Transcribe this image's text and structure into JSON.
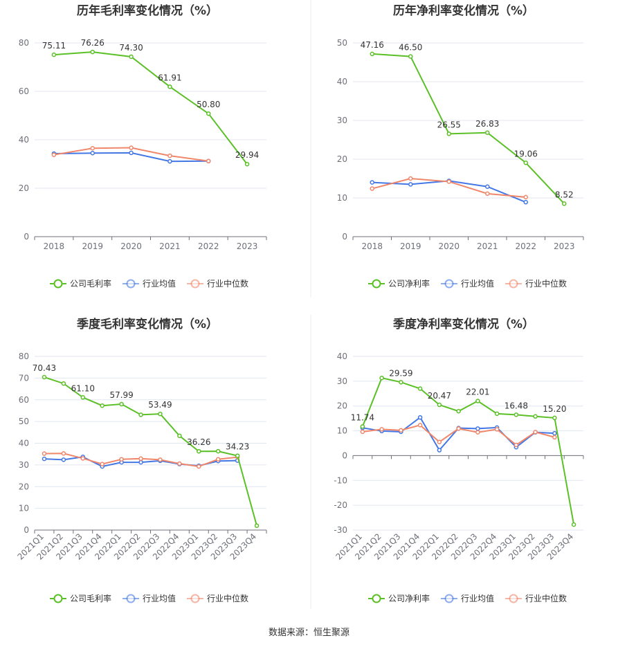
{
  "source": "数据来源：恒生聚源",
  "colors": {
    "company": "#5ac026",
    "industry_avg": "#4477e6",
    "industry_median": "#f0866a",
    "grid": "#e0e6f1",
    "axis": "#6e7079"
  },
  "chart_data": [
    {
      "type": "line",
      "title": "历年毛利率变化情况（%）",
      "categories": [
        "2018",
        "2019",
        "2020",
        "2021",
        "2022",
        "2023"
      ],
      "ylim": [
        0,
        80
      ],
      "yticks": [
        0,
        20,
        40,
        60,
        80
      ],
      "label_rotate": false,
      "series": [
        {
          "name": "公司毛利率",
          "color": "company",
          "values": [
            75.11,
            76.26,
            74.3,
            61.91,
            50.8,
            29.94
          ],
          "labels": [
            "75.11",
            "76.26",
            "74.30",
            "61.91",
            "50.80",
            "29.94"
          ]
        },
        {
          "name": "行业均值",
          "color": "industry_avg",
          "values": [
            34.3,
            34.5,
            34.6,
            31.1,
            31.2,
            null
          ]
        },
        {
          "name": "行业中位数",
          "color": "industry_median",
          "values": [
            33.8,
            36.5,
            36.7,
            33.4,
            31.2,
            null
          ]
        }
      ]
    },
    {
      "type": "line",
      "title": "历年净利率变化情况（%）",
      "categories": [
        "2018",
        "2019",
        "2020",
        "2021",
        "2022",
        "2023"
      ],
      "ylim": [
        0,
        50
      ],
      "yticks": [
        0,
        10,
        20,
        30,
        40,
        50
      ],
      "label_rotate": false,
      "series": [
        {
          "name": "公司净利率",
          "color": "company",
          "values": [
            47.16,
            46.5,
            26.55,
            26.83,
            19.06,
            8.52
          ],
          "labels": [
            "47.16",
            "46.50",
            "26.55",
            "26.83",
            "19.06",
            "8.52"
          ]
        },
        {
          "name": "行业均值",
          "color": "industry_avg",
          "values": [
            14.0,
            13.5,
            14.4,
            12.9,
            8.9,
            null
          ]
        },
        {
          "name": "行业中位数",
          "color": "industry_median",
          "values": [
            12.4,
            15.0,
            14.2,
            11.1,
            10.2,
            null
          ]
        }
      ]
    },
    {
      "type": "line",
      "title": "季度毛利率变化情况（%）",
      "categories": [
        "2021Q1",
        "2021Q2",
        "2021Q3",
        "2021Q4",
        "2022Q1",
        "2022Q2",
        "2022Q3",
        "2022Q4",
        "2023Q1",
        "2023Q2",
        "2023Q3",
        "2023Q4"
      ],
      "ylim": [
        0,
        80
      ],
      "yticks": [
        0,
        10,
        20,
        30,
        40,
        50,
        60,
        70,
        80
      ],
      "label_rotate": true,
      "series": [
        {
          "name": "公司毛利率",
          "color": "company",
          "values": [
            70.43,
            67.5,
            61.1,
            57.3,
            57.99,
            53.1,
            53.49,
            43.4,
            36.26,
            36.3,
            34.23,
            2.0
          ],
          "labels": [
            "70.43",
            "",
            "61.10",
            "",
            "57.99",
            "",
            "53.49",
            "",
            "36.26",
            "",
            "34.23",
            ""
          ]
        },
        {
          "name": "行业均值",
          "color": "industry_avg",
          "values": [
            32.8,
            32.4,
            33.7,
            29.3,
            31.2,
            31.2,
            31.9,
            30.4,
            29.6,
            31.8,
            32.0,
            null
          ]
        },
        {
          "name": "行业中位数",
          "color": "industry_median",
          "values": [
            35.2,
            35.3,
            33.0,
            30.4,
            32.6,
            32.9,
            32.4,
            30.6,
            29.3,
            32.6,
            33.6,
            null
          ]
        }
      ]
    },
    {
      "type": "line",
      "title": "季度净利率变化情况（%）",
      "categories": [
        "2021Q1",
        "2021Q2",
        "2021Q3",
        "2021Q4",
        "2022Q1",
        "2022Q2",
        "2022Q3",
        "2022Q4",
        "2023Q1",
        "2023Q2",
        "2023Q3",
        "2023Q4"
      ],
      "ylim": [
        -30,
        40
      ],
      "yticks": [
        -30,
        -20,
        -10,
        0,
        10,
        20,
        30,
        40
      ],
      "label_rotate": true,
      "series": [
        {
          "name": "公司净利率",
          "color": "company",
          "values": [
            11.74,
            31.3,
            29.59,
            27.0,
            20.47,
            17.9,
            22.01,
            16.9,
            16.48,
            15.8,
            15.2,
            -27.8
          ],
          "labels": [
            "11.74",
            "",
            "29.59",
            "",
            "20.47",
            "",
            "22.01",
            "",
            "16.48",
            "",
            "15.20",
            ""
          ]
        },
        {
          "name": "行业均值",
          "color": "industry_avg",
          "values": [
            11.2,
            9.9,
            9.6,
            15.4,
            2.2,
            11.1,
            10.9,
            11.3,
            3.4,
            9.4,
            9.0,
            null
          ]
        },
        {
          "name": "行业中位数",
          "color": "industry_median",
          "values": [
            9.6,
            10.6,
            10.2,
            12.3,
            5.5,
            10.9,
            9.4,
            10.6,
            4.3,
            9.5,
            7.4,
            null
          ]
        }
      ]
    }
  ]
}
